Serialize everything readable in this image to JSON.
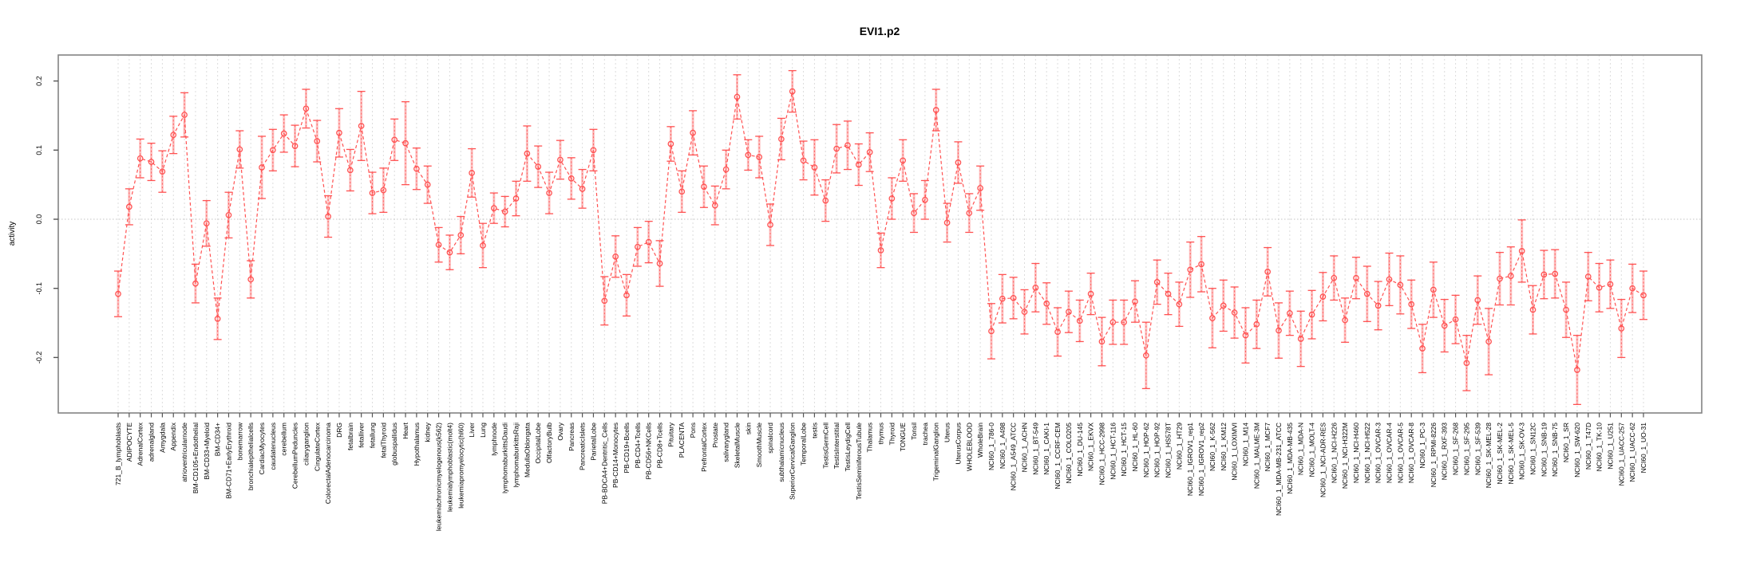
{
  "chart_data": {
    "type": "line",
    "title": "EVI1.p2",
    "xlabel": "",
    "ylabel": "activity",
    "legend": "none",
    "grid": "vertical-dashed-per-category, dotted-zero-line",
    "ylim": [
      -0.28,
      0.24
    ],
    "yticks": [
      0.2,
      0.1,
      0.0,
      -0.1,
      -0.2
    ],
    "ytick_labels": [
      "0.2",
      "0.1",
      "0.0",
      "-0.1",
      "-0.2"
    ],
    "marker": "open-circle",
    "error_bar_style": "dotted-stem-with-caps",
    "colors": {
      "series": "#ff5252",
      "error_bar_light": "rgba(255,120,120,0.45)",
      "error_bar_dark": "#ff6060",
      "grid": "#dcdcdc",
      "zero_line": "#c4c4c4",
      "box": "#848484",
      "tick": "#555555",
      "text": "#000000"
    },
    "categories": [
      "721_B_lymphoblasts",
      "ADIPOCYTE",
      "AdrenalCortex",
      "adrenalgland",
      "Amygdala",
      "Appendix",
      "atrioventricularnode",
      "BM-CD105+Endothelial",
      "BM-CD33+Myeloid",
      "BM-CD34+",
      "BM-CD71+EarlyErythroid",
      "bonemarrow",
      "bronchialepithelialcells",
      "CardiacMyocytes",
      "caudatenucleus",
      "cerebellum",
      "CerebellumPeduncles",
      "ciliaryganglion",
      "CingulateCortex",
      "ColorectalAdenocarcinoma",
      "DRG",
      "fetalbrain",
      "fetalliver",
      "fetallung",
      "fetalThyroid",
      "globuspallidus",
      "Heart",
      "Hypothalamus",
      "kidney",
      "leukemiachronicmyelogenous(k562)",
      "leukemialymphoblastic(molt4)",
      "leukemiapromyelocytic(hl60)",
      "Liver",
      "Lung",
      "lymphnode",
      "lymphomaburkittsDaudi",
      "lymphomaburkittsRaji",
      "MedullaOblongata",
      "OccipitalLobe",
      "OlfactoryBulb",
      "Ovary",
      "Pancreas",
      "PancreaticIslets",
      "ParietalLobe",
      "PB-BDCA4+Dentritic_Cells",
      "PB-CD14+Monocytes",
      "PB-CD19+Bcells",
      "PB-CD4+Tcells",
      "PB-CD56+NKCells",
      "PB-CD8+Tcells",
      "Pituitary",
      "PLACENTA",
      "Pons",
      "PrefrontalCortex",
      "Prostate",
      "salivarygland",
      "SkeletalMuscle",
      "skin",
      "SmoothMuscle",
      "spinalcord",
      "subthalamicnucleus",
      "SuperiorCervicalGanglion",
      "TemporalLobe",
      "testis",
      "TestisGermCell",
      "TestisInterstitial",
      "TestisLeydigCell",
      "TestisSeminiferousTubule",
      "Thalamus",
      "thymus",
      "Thyroid",
      "TONGUE",
      "Tonsil",
      "trachea",
      "TrigeminalGanglion",
      "Uterus",
      "UterusCorpus",
      "WHOLEBLOOD",
      "WholeBrain",
      "NCI60_1_786-0",
      "NCI60_1_A498",
      "NCI60_1_A549_ATCC",
      "NCI60_1_ACHN",
      "NCI60_1_BT-549",
      "NCI60_1_CAKI-1",
      "NCI60_1_CCRF-CEM",
      "NCI60_1_COLO205",
      "NCI60_1_DU-145",
      "NCI60_1_EKVX",
      "NCI60_1_HCC-2998",
      "NCI60_1_HCT-116",
      "NCI60_1_HCT-15",
      "NCI60_1_HL-60",
      "NCI60_1_HOP-62",
      "NCI60_1_HOP-92",
      "NCI60_1_HS578T",
      "NCI60_1_HT29",
      "NCI60_1_IGROV1_rep1",
      "NCI60_1_IGROV1_rep2",
      "NCI60_1_K-562",
      "NCI60_1_KM12",
      "NCI60_1_LOXIMVI",
      "NCI60_1_M14",
      "NCI60_1_MALME-3M",
      "NCI60_1_MCF7",
      "NCI60_1_MDA-MB-231_ATCC",
      "NCI60_1_MDA-MB-435",
      "NCI60_1_MDA-N",
      "NCI60_1_MOLT-4",
      "NCI60_1_NCI-ADR-RES",
      "NCI60_1_NCI-H226",
      "NCI60_1_NCI-H322M",
      "NCI60_1_NCI-H460",
      "NCI60_1_NCI-H522",
      "NCI60_1_OVCAR-3",
      "NCI60_1_OVCAR-4",
      "NCI60_1_OVCAR-5",
      "NCI60_1_OVCAR-8",
      "NCI60_1_PC-3",
      "NCI60_1_RPMI-8226",
      "NCI60_1_RXF-393",
      "NCI60_1_SF-268",
      "NCI60_1_SF-295",
      "NCI60_1_SF-539",
      "NCI60_1_SK-MEL-28",
      "NCI60_1_SK-MEL-2",
      "NCI60_1_SK-MEL-5",
      "NCI60_1_SK-OV-3",
      "NCI60_1_SN12C",
      "NCI60_1_SNB-19",
      "NCI60_1_SNB-75",
      "NCI60_1_SR",
      "NCI60_1_SW-620",
      "NCI60_1_T47D",
      "NCI60_1_TK-10",
      "NCI60_1_U251",
      "NCI60_1_UACC-257",
      "NCI60_1_UACC-62",
      "NCI60_1_UO-31"
    ],
    "values": [
      -0.108,
      0.018,
      0.088,
      0.083,
      0.069,
      0.122,
      0.151,
      -0.093,
      -0.006,
      -0.144,
      0.006,
      0.101,
      -0.087,
      0.075,
      0.1,
      0.124,
      0.106,
      0.16,
      0.113,
      0.004,
      0.125,
      0.071,
      0.135,
      0.038,
      0.042,
      0.115,
      0.11,
      0.073,
      0.05,
      -0.037,
      -0.048,
      -0.023,
      0.067,
      -0.038,
      0.016,
      0.011,
      0.03,
      0.095,
      0.076,
      0.038,
      0.086,
      0.059,
      0.044,
      0.1,
      -0.118,
      -0.054,
      -0.11,
      -0.04,
      -0.033,
      -0.064,
      0.109,
      0.04,
      0.125,
      0.047,
      0.02,
      0.072,
      0.177,
      0.093,
      0.09,
      -0.008,
      0.116,
      0.185,
      0.085,
      0.075,
      0.027,
      0.102,
      0.107,
      0.079,
      0.097,
      -0.045,
      0.03,
      0.085,
      0.009,
      0.028,
      0.158,
      -0.005,
      0.082,
      0.009,
      0.045,
      -0.162,
      -0.115,
      -0.114,
      -0.134,
      -0.099,
      -0.122,
      -0.163,
      -0.134,
      -0.147,
      -0.108,
      -0.177,
      -0.149,
      -0.149,
      -0.119,
      -0.197,
      -0.091,
      -0.108,
      -0.123,
      -0.073,
      -0.065,
      -0.143,
      -0.125,
      -0.135,
      -0.168,
      -0.152,
      -0.076,
      -0.161,
      -0.136,
      -0.173,
      -0.138,
      -0.112,
      -0.085,
      -0.146,
      -0.085,
      -0.108,
      -0.125,
      -0.087,
      -0.095,
      -0.123,
      -0.187,
      -0.102,
      -0.154,
      -0.145,
      -0.208,
      -0.117,
      -0.177,
      -0.086,
      -0.082,
      -0.046,
      -0.131,
      -0.08,
      -0.079,
      -0.131,
      -0.218,
      -0.083,
      -0.099,
      -0.094,
      -0.158,
      -0.1,
      -0.11
    ],
    "errors": [
      0.033,
      0.026,
      0.028,
      0.027,
      0.03,
      0.027,
      0.032,
      0.028,
      0.033,
      0.03,
      0.033,
      0.027,
      0.027,
      0.045,
      0.03,
      0.027,
      0.03,
      0.028,
      0.03,
      0.03,
      0.035,
      0.03,
      0.05,
      0.03,
      0.032,
      0.03,
      0.06,
      0.03,
      0.027,
      0.025,
      0.025,
      0.027,
      0.035,
      0.032,
      0.022,
      0.022,
      0.025,
      0.04,
      0.03,
      0.03,
      0.028,
      0.03,
      0.028,
      0.03,
      0.035,
      0.03,
      0.03,
      0.028,
      0.03,
      0.033,
      0.025,
      0.03,
      0.032,
      0.03,
      0.028,
      0.028,
      0.032,
      0.022,
      0.03,
      0.03,
      0.03,
      0.03,
      0.028,
      0.04,
      0.03,
      0.035,
      0.035,
      0.03,
      0.028,
      0.025,
      0.03,
      0.03,
      0.028,
      0.028,
      0.03,
      0.028,
      0.03,
      0.028,
      0.032,
      0.04,
      0.035,
      0.03,
      0.032,
      0.035,
      0.03,
      0.035,
      0.03,
      0.03,
      0.03,
      0.035,
      0.032,
      0.032,
      0.03,
      0.048,
      0.032,
      0.03,
      0.032,
      0.04,
      0.04,
      0.043,
      0.037,
      0.037,
      0.04,
      0.035,
      0.035,
      0.04,
      0.032,
      0.04,
      0.035,
      0.035,
      0.032,
      0.032,
      0.03,
      0.04,
      0.035,
      0.038,
      0.042,
      0.035,
      0.035,
      0.04,
      0.038,
      0.035,
      0.04,
      0.035,
      0.048,
      0.038,
      0.042,
      0.045,
      0.035,
      0.035,
      0.035,
      0.04,
      0.05,
      0.035,
      0.035,
      0.035,
      0.042,
      0.035,
      0.035
    ]
  }
}
